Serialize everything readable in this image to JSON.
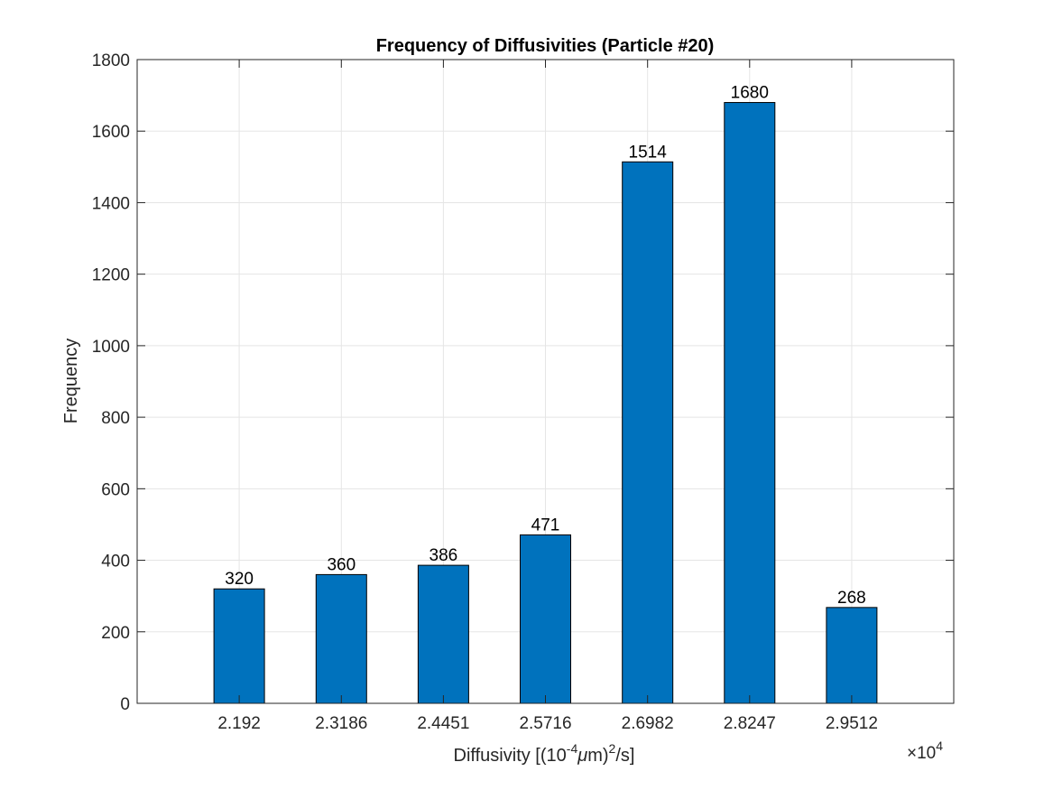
{
  "chart_data": {
    "type": "bar",
    "title": "Frequency of Diffusivities (Particle #20)",
    "xlabel": {
      "prefix": "Diffusivity [(10",
      "exp1": "-4",
      "mu": "μ",
      "mid": "m)",
      "exp2": "2",
      "suffix": "/s]"
    },
    "ylabel": "Frequency",
    "categories": [
      "2.192",
      "2.3186",
      "2.4451",
      "2.5716",
      "2.6982",
      "2.8247",
      "2.9512"
    ],
    "x_values": [
      2.192,
      2.3186,
      2.4451,
      2.5716,
      2.6982,
      2.8247,
      2.9512
    ],
    "values": [
      320,
      360,
      386,
      471,
      1514,
      1680,
      268
    ],
    "data_labels": [
      "320",
      "360",
      "386",
      "471",
      "1514",
      "1680",
      "268"
    ],
    "xlim": [
      2.0655,
      3.0777
    ],
    "ylim": [
      0,
      1800
    ],
    "yticks": [
      0,
      200,
      400,
      600,
      800,
      1000,
      1200,
      1400,
      1600,
      1800
    ],
    "ytick_labels": [
      "0",
      "200",
      "400",
      "600",
      "800",
      "1000",
      "1200",
      "1400",
      "1600",
      "1800"
    ],
    "x_exponent": {
      "times": "×10",
      "power": "4"
    },
    "grid": true,
    "bar_color": "#0072BD",
    "bar_edge_color": "#000000"
  }
}
